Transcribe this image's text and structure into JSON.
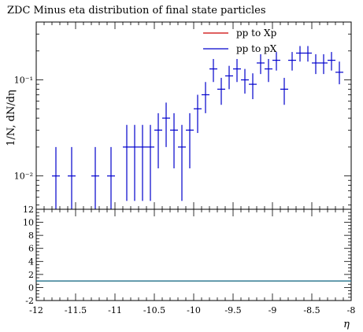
{
  "chart_data": [
    {
      "panel": "main",
      "type": "scatter",
      "title": "ZDC Minus eta distribution of final state particles",
      "xlabel": "η",
      "ylabel": "1/N, dN/dη",
      "xlim": [
        -12,
        -8
      ],
      "ylim": [
        0.0045,
        0.4
      ],
      "yscale": "log",
      "ytick_labels": [
        {
          "v": 0.01,
          "label": "10⁻²"
        },
        {
          "v": 0.1,
          "label": "10⁻¹"
        }
      ],
      "legend": [
        "pp to Xp",
        "pp to pX"
      ],
      "legend_placement": "top-right",
      "series": [
        {
          "name": "pp to Xp",
          "color": "#cc0000",
          "points": []
        },
        {
          "name": "pp to pX",
          "color": "#0000cc",
          "points": [
            {
              "x": -11.75,
              "y": 0.01,
              "lo": 0.0045,
              "hi": 0.02
            },
            {
              "x": -11.55,
              "y": 0.01,
              "lo": 0.0045,
              "hi": 0.02
            },
            {
              "x": -11.25,
              "y": 0.01,
              "lo": 0.0045,
              "hi": 0.02
            },
            {
              "x": -11.05,
              "y": 0.01,
              "lo": 0.0045,
              "hi": 0.02
            },
            {
              "x": -10.85,
              "y": 0.02,
              "lo": 0.0055,
              "hi": 0.034
            },
            {
              "x": -10.75,
              "y": 0.02,
              "lo": 0.0055,
              "hi": 0.034
            },
            {
              "x": -10.65,
              "y": 0.02,
              "lo": 0.0055,
              "hi": 0.034
            },
            {
              "x": -10.55,
              "y": 0.02,
              "lo": 0.0055,
              "hi": 0.034
            },
            {
              "x": -10.45,
              "y": 0.03,
              "lo": 0.012,
              "hi": 0.045
            },
            {
              "x": -10.35,
              "y": 0.04,
              "lo": 0.02,
              "hi": 0.058
            },
            {
              "x": -10.25,
              "y": 0.03,
              "lo": 0.012,
              "hi": 0.045
            },
            {
              "x": -10.15,
              "y": 0.02,
              "lo": 0.0055,
              "hi": 0.034
            },
            {
              "x": -10.05,
              "y": 0.03,
              "lo": 0.012,
              "hi": 0.045
            },
            {
              "x": -9.95,
              "y": 0.05,
              "lo": 0.028,
              "hi": 0.07
            },
            {
              "x": -9.85,
              "y": 0.07,
              "lo": 0.045,
              "hi": 0.095
            },
            {
              "x": -9.75,
              "y": 0.13,
              "lo": 0.095,
              "hi": 0.165
            },
            {
              "x": -9.65,
              "y": 0.08,
              "lo": 0.055,
              "hi": 0.105
            },
            {
              "x": -9.55,
              "y": 0.11,
              "lo": 0.08,
              "hi": 0.14
            },
            {
              "x": -9.45,
              "y": 0.13,
              "lo": 0.095,
              "hi": 0.165
            },
            {
              "x": -9.35,
              "y": 0.1,
              "lo": 0.072,
              "hi": 0.13
            },
            {
              "x": -9.25,
              "y": 0.09,
              "lo": 0.063,
              "hi": 0.117
            },
            {
              "x": -9.15,
              "y": 0.15,
              "lo": 0.115,
              "hi": 0.185
            },
            {
              "x": -9.05,
              "y": 0.13,
              "lo": 0.095,
              "hi": 0.165
            },
            {
              "x": -8.95,
              "y": 0.16,
              "lo": 0.125,
              "hi": 0.195
            },
            {
              "x": -8.85,
              "y": 0.08,
              "lo": 0.055,
              "hi": 0.105
            },
            {
              "x": -8.75,
              "y": 0.16,
              "lo": 0.125,
              "hi": 0.195
            },
            {
              "x": -8.65,
              "y": 0.19,
              "lo": 0.155,
              "hi": 0.225
            },
            {
              "x": -8.55,
              "y": 0.19,
              "lo": 0.155,
              "hi": 0.225
            },
            {
              "x": -8.45,
              "y": 0.15,
              "lo": 0.115,
              "hi": 0.185
            },
            {
              "x": -8.35,
              "y": 0.15,
              "lo": 0.115,
              "hi": 0.185
            },
            {
              "x": -8.25,
              "y": 0.16,
              "lo": 0.125,
              "hi": 0.195
            },
            {
              "x": -8.15,
              "y": 0.12,
              "lo": 0.09,
              "hi": 0.155
            }
          ]
        }
      ]
    },
    {
      "panel": "ratio",
      "type": "line",
      "xlabel": "η",
      "xlim": [
        -12,
        -8
      ],
      "ylim": [
        -2,
        12
      ],
      "xticks": [
        -12,
        -11.5,
        -11,
        -10.5,
        -10,
        -9.5,
        -9,
        -8.5,
        -8
      ],
      "xtick_labels": [
        "-12",
        "-11.5",
        "-11",
        "-10.5",
        "-10",
        "-9.5",
        "-9",
        "-8.5",
        "-8"
      ],
      "yticks": [
        -2,
        0,
        2,
        4,
        6,
        8,
        10,
        12
      ],
      "ytick_labels": [
        "-2",
        "0",
        "2",
        "4",
        "6",
        "8",
        "10",
        "12"
      ],
      "series": [
        {
          "name": "",
          "color": "#cc0000",
          "x": [
            -12,
            -8
          ],
          "y": [
            1,
            1
          ]
        },
        {
          "name": "",
          "color": "#0000cc",
          "x": [
            -12,
            -8
          ],
          "y": [
            1,
            1
          ]
        },
        {
          "name": "",
          "color": "#008080",
          "x": [
            -12,
            -8
          ],
          "y": [
            1,
            1
          ]
        }
      ]
    }
  ]
}
